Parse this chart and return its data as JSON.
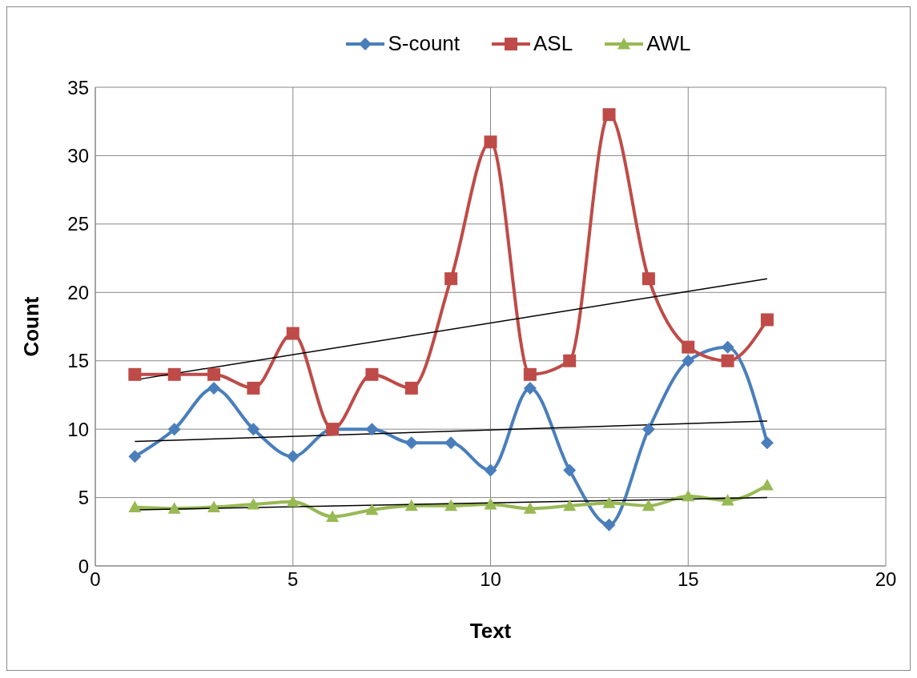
{
  "chart_data": {
    "type": "line",
    "xlabel": "Text",
    "ylabel": "Count",
    "x": [
      1,
      2,
      3,
      4,
      5,
      6,
      7,
      8,
      9,
      10,
      11,
      12,
      13,
      14,
      15,
      16,
      17
    ],
    "series": [
      {
        "name": "S-count",
        "color": "#4a7ebb",
        "marker": "diamond",
        "values": [
          8,
          10,
          13,
          10,
          8,
          10,
          10,
          9,
          9,
          7,
          13,
          7,
          3,
          10,
          15,
          16,
          9
        ]
      },
      {
        "name": "ASL",
        "color": "#be4b48",
        "marker": "square",
        "values": [
          14,
          14,
          14,
          13,
          17,
          10,
          14,
          13,
          21,
          31,
          14,
          15,
          33,
          21,
          16,
          15,
          18
        ]
      },
      {
        "name": "AWL",
        "color": "#98b954",
        "marker": "triangle",
        "values": [
          4.3,
          4.2,
          4.3,
          4.5,
          4.7,
          3.6,
          4.1,
          4.4,
          4.4,
          4.5,
          4.2,
          4.4,
          4.6,
          4.4,
          5.1,
          4.8,
          5.9
        ]
      },
      {
        "type": "line",
        "color": "#000000",
        "marker": "none",
        "values": [
          13.6,
          null,
          null,
          null,
          null,
          null,
          null,
          null,
          null,
          null,
          null,
          null,
          null,
          null,
          null,
          null,
          21.0
        ]
      },
      {
        "type": "line",
        "color": "#000000",
        "marker": "none",
        "values": [
          9.1,
          null,
          null,
          null,
          null,
          null,
          null,
          null,
          null,
          null,
          null,
          null,
          null,
          null,
          null,
          null,
          10.6
        ]
      },
      {
        "type": "line",
        "color": "#000000",
        "marker": "none",
        "values": [
          4.1,
          null,
          null,
          null,
          null,
          null,
          null,
          null,
          null,
          null,
          null,
          null,
          null,
          null,
          null,
          null,
          5.0
        ]
      }
    ],
    "xlim": [
      0,
      20
    ],
    "xticks": [
      0,
      5,
      10,
      15,
      20
    ],
    "ylim": [
      0,
      35
    ],
    "yticks": [
      0,
      5,
      10,
      15,
      20,
      25,
      30,
      35
    ],
    "grid": true,
    "legend": "top"
  }
}
